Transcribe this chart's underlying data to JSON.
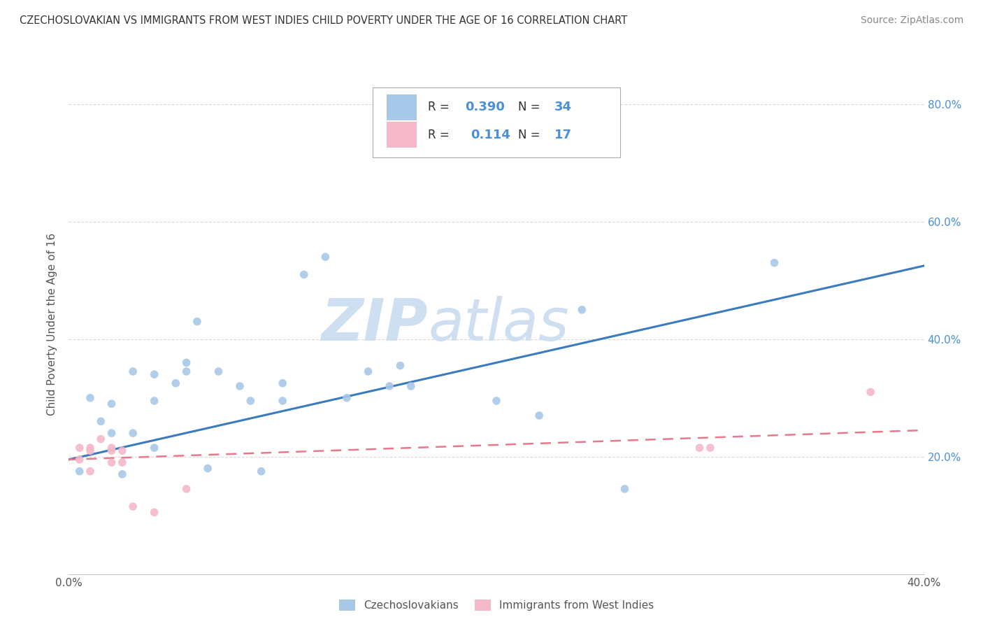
{
  "title": "CZECHOSLOVAKIAN VS IMMIGRANTS FROM WEST INDIES CHILD POVERTY UNDER THE AGE OF 16 CORRELATION CHART",
  "source": "Source: ZipAtlas.com",
  "ylabel": "Child Poverty Under the Age of 16",
  "xmin": 0.0,
  "xmax": 0.4,
  "ymin": 0.0,
  "ymax": 0.85,
  "yticks": [
    0.2,
    0.4,
    0.6,
    0.8
  ],
  "ytick_labels": [
    "20.0%",
    "40.0%",
    "60.0%",
    "80.0%"
  ],
  "xticks": [
    0.0,
    0.1,
    0.2,
    0.3,
    0.4
  ],
  "xtick_labels": [
    "0.0%",
    "",
    "",
    "",
    "40.0%"
  ],
  "legend_label1": "Czechoslovakians",
  "legend_label2": "Immigrants from West Indies",
  "R1": 0.39,
  "N1": 34,
  "R2": 0.114,
  "N2": 17,
  "color_blue": "#a8c8e8",
  "color_pink": "#f4b8c8",
  "line_blue": "#3a7abf",
  "line_pink": "#e8788a",
  "watermark_color": "#cddff0",
  "blue_scatter_x": [
    0.005,
    0.01,
    0.015,
    0.02,
    0.02,
    0.025,
    0.03,
    0.03,
    0.04,
    0.04,
    0.04,
    0.05,
    0.055,
    0.055,
    0.06,
    0.065,
    0.07,
    0.08,
    0.085,
    0.09,
    0.1,
    0.1,
    0.11,
    0.12,
    0.13,
    0.14,
    0.15,
    0.155,
    0.16,
    0.2,
    0.22,
    0.24,
    0.26,
    0.33
  ],
  "blue_scatter_y": [
    0.175,
    0.3,
    0.26,
    0.29,
    0.24,
    0.17,
    0.345,
    0.24,
    0.34,
    0.295,
    0.215,
    0.325,
    0.36,
    0.345,
    0.43,
    0.18,
    0.345,
    0.32,
    0.295,
    0.175,
    0.325,
    0.295,
    0.51,
    0.54,
    0.3,
    0.345,
    0.32,
    0.355,
    0.32,
    0.295,
    0.27,
    0.45,
    0.145,
    0.53
  ],
  "pink_scatter_x": [
    0.005,
    0.005,
    0.01,
    0.01,
    0.01,
    0.015,
    0.02,
    0.02,
    0.02,
    0.025,
    0.025,
    0.03,
    0.04,
    0.055,
    0.295,
    0.3,
    0.375
  ],
  "pink_scatter_y": [
    0.215,
    0.195,
    0.175,
    0.215,
    0.21,
    0.23,
    0.215,
    0.21,
    0.19,
    0.21,
    0.19,
    0.115,
    0.105,
    0.145,
    0.215,
    0.215,
    0.31
  ],
  "blue_line_x": [
    0.0,
    0.4
  ],
  "blue_line_y": [
    0.195,
    0.525
  ],
  "pink_line_x": [
    0.0,
    0.4
  ],
  "pink_line_y": [
    0.195,
    0.245
  ],
  "background_color": "#ffffff",
  "grid_color": "#c8c8c8"
}
